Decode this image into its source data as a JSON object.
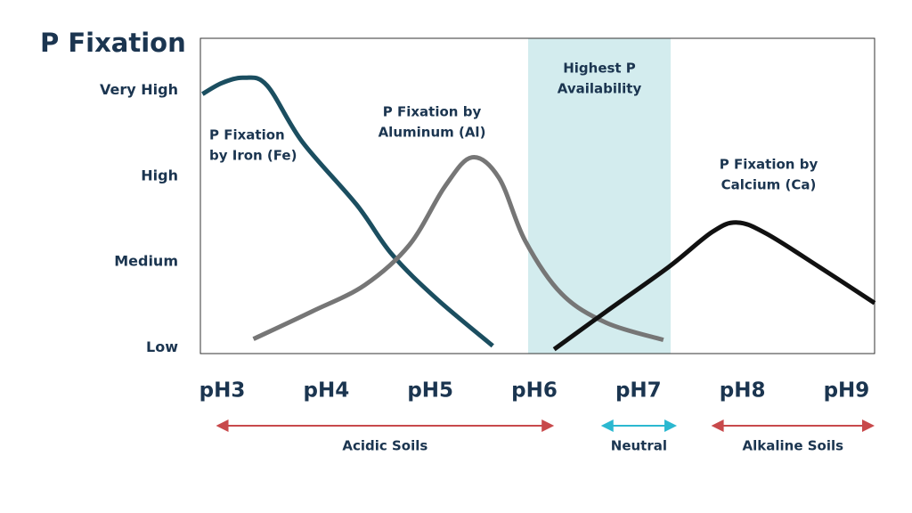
{
  "chart_data": {
    "type": "line",
    "title": "P Fixation",
    "xlim": [
      2.79,
      9.27
    ],
    "ylim": [
      -0.07,
      3.61
    ],
    "xticks": [
      {
        "value": 3,
        "label": "pH3"
      },
      {
        "value": 4,
        "label": "pH4"
      },
      {
        "value": 5,
        "label": "pH5"
      },
      {
        "value": 6,
        "label": "pH6"
      },
      {
        "value": 7,
        "label": "pH7"
      },
      {
        "value": 8,
        "label": "pH8"
      },
      {
        "value": 9,
        "label": "pH9"
      }
    ],
    "yticks": [
      {
        "value": 0,
        "label": "Low"
      },
      {
        "value": 1,
        "label": "Medium"
      },
      {
        "value": 2,
        "label": "High"
      },
      {
        "value": 3,
        "label": "Very High"
      }
    ],
    "band": {
      "from": 5.94,
      "to": 7.31,
      "color": "#d3ecee",
      "label": [
        "Highest P",
        "Availability"
      ]
    },
    "series": [
      {
        "name": [
          "P Fixation",
          "by Iron (Fe)"
        ],
        "color": "#1b4e60",
        "x": [
          2.81,
          3.0,
          3.21,
          3.43,
          3.77,
          4.29,
          4.63,
          5.06,
          5.6
        ],
        "values": [
          2.96,
          3.09,
          3.15,
          3.06,
          2.4,
          1.67,
          1.09,
          0.57,
          0.02
        ]
      },
      {
        "name": [
          "P Fixation by",
          "Aluminum (Al)"
        ],
        "color": "#767676",
        "x": [
          3.3,
          3.86,
          4.37,
          4.8,
          5.14,
          5.4,
          5.66,
          5.91,
          6.26,
          6.69,
          7.24
        ],
        "values": [
          0.1,
          0.42,
          0.73,
          1.2,
          1.88,
          2.22,
          1.98,
          1.25,
          0.63,
          0.29,
          0.09
        ]
      },
      {
        "name": [
          "P Fixation by",
          "Calcium (Ca)"
        ],
        "color": "#111111",
        "x": [
          6.19,
          6.69,
          7.29,
          7.71,
          7.95,
          8.23,
          8.74,
          9.27
        ],
        "values": [
          -0.02,
          0.42,
          0.94,
          1.35,
          1.46,
          1.33,
          0.94,
          0.52
        ]
      }
    ],
    "ranges": [
      {
        "label": "Acidic Soils",
        "from": 2.94,
        "to": 6.19,
        "color": "#c8494b"
      },
      {
        "label": "Neutral",
        "from": 6.64,
        "to": 7.37,
        "color": "#2bb8d0"
      },
      {
        "label": "Alkaline Soils",
        "from": 7.7,
        "to": 9.27,
        "color": "#c8494b"
      }
    ]
  }
}
